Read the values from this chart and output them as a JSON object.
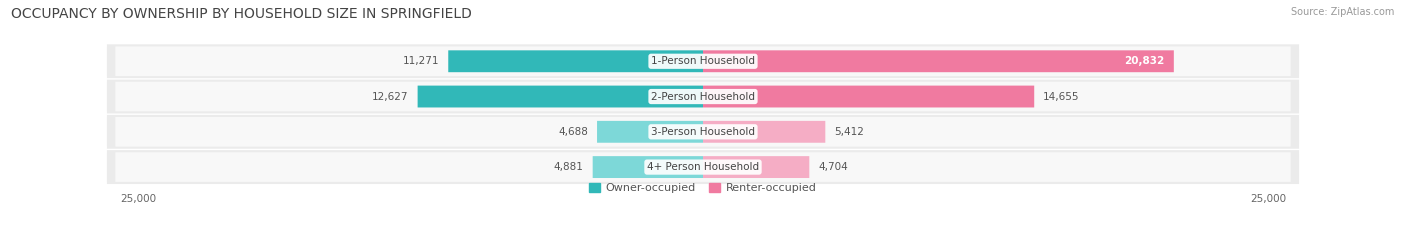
{
  "title": "OCCUPANCY BY OWNERSHIP BY HOUSEHOLD SIZE IN SPRINGFIELD",
  "source": "Source: ZipAtlas.com",
  "categories": [
    "1-Person Household",
    "2-Person Household",
    "3-Person Household",
    "4+ Person Household"
  ],
  "owner_values": [
    11271,
    12627,
    4688,
    4881
  ],
  "renter_values": [
    20832,
    14655,
    5412,
    4704
  ],
  "owner_color_dark": "#31b8b8",
  "owner_color_light": "#7dd8d8",
  "renter_color_dark": "#f07aa0",
  "renter_color_light": "#f5adc5",
  "max_val": 25000,
  "background_color": "#ffffff",
  "row_bg_color": "#eeeeee",
  "title_fontsize": 10,
  "label_fontsize": 7.5,
  "tick_fontsize": 7.5,
  "legend_fontsize": 8,
  "source_fontsize": 7,
  "value_inside_color": "#ffffff",
  "value_outside_color": "#555555"
}
